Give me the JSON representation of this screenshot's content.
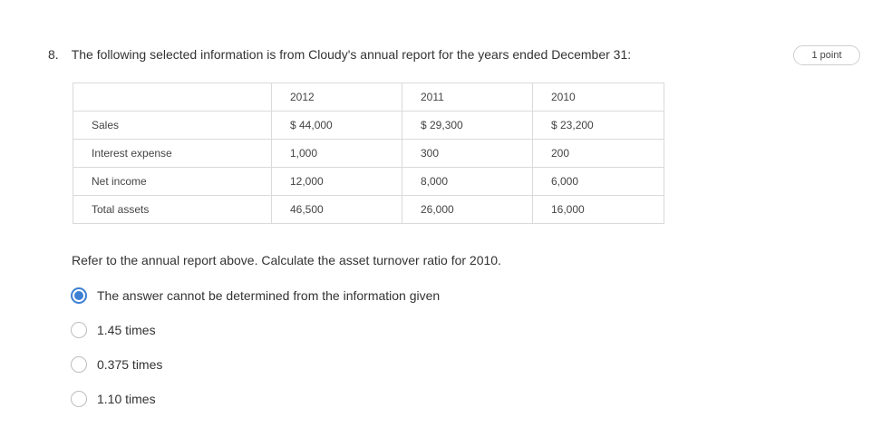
{
  "question": {
    "number": "8.",
    "text": "The following selected information is from Cloudy's annual report for the years ended December 31:",
    "points": "1 point",
    "prompt": "Refer to the annual report above. Calculate the asset turnover ratio for 2010."
  },
  "table": {
    "header": [
      "",
      "2012",
      "2011",
      "2010"
    ],
    "rows": [
      [
        "Sales",
        "$ 44,000",
        "$ 29,300",
        "$ 23,200"
      ],
      [
        "Interest expense",
        "1,000",
        "300",
        "200"
      ],
      [
        "Net income",
        "12,000",
        "8,000",
        "6,000"
      ],
      [
        "Total assets",
        "46,500",
        "26,000",
        "16,000"
      ]
    ]
  },
  "options": [
    {
      "label": "The answer cannot be determined from the information given",
      "selected": true
    },
    {
      "label": "1.45 times",
      "selected": false
    },
    {
      "label": "0.375 times",
      "selected": false
    },
    {
      "label": "1.10 times",
      "selected": false
    }
  ],
  "colors": {
    "accent": "#3d7fd4",
    "border": "#dadada"
  }
}
